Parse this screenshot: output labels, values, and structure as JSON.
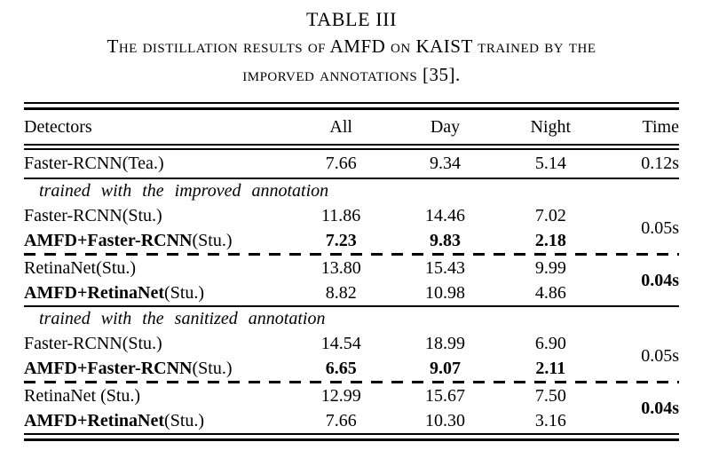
{
  "page": {
    "caption": "TABLE III",
    "subtitle_line1": "The distillation results of AMFD on KAIST trained by the",
    "subtitle_line2": "imporved annotations [35].",
    "text_color": "#000000",
    "background_color": "#ffffff"
  },
  "table": {
    "columns": [
      "Detectors",
      "All",
      "Day",
      "Night",
      "Time"
    ],
    "rows": [
      {
        "type": "data",
        "detector": "Faster-RCNN",
        "suffix": "(Tea.)",
        "bold_detector": false,
        "values": [
          "7.66",
          "9.34",
          "5.14"
        ],
        "bold_values": false,
        "time": "0.12s",
        "time_bold": false,
        "time_rowspan": 1
      },
      {
        "type": "rule"
      },
      {
        "type": "section",
        "label": "trained with the improved annotation"
      },
      {
        "type": "data",
        "detector": "Faster-RCNN",
        "suffix": "(Stu.)",
        "bold_detector": false,
        "values": [
          "11.86",
          "14.46",
          "7.02"
        ],
        "bold_values": false,
        "time": "0.05s",
        "time_bold": false,
        "time_rowspan": 2
      },
      {
        "type": "data",
        "detector": "AMFD+Faster-RCNN",
        "suffix": "(Stu.)",
        "bold_detector": true,
        "values": [
          "7.23",
          "9.83",
          "2.18"
        ],
        "bold_values": true
      },
      {
        "type": "dashed"
      },
      {
        "type": "data",
        "detector": "RetinaNet",
        "suffix": "(Stu.)",
        "bold_detector": false,
        "values": [
          "13.80",
          "15.43",
          "9.99"
        ],
        "bold_values": false,
        "time": "0.04s",
        "time_bold": true,
        "time_rowspan": 2
      },
      {
        "type": "data",
        "detector": "AMFD+RetinaNet",
        "suffix": "(Stu.)",
        "bold_detector": true,
        "values": [
          "8.82",
          "10.98",
          "4.86"
        ],
        "bold_values": false
      },
      {
        "type": "rule"
      },
      {
        "type": "section",
        "label": "trained with the sanitized annotation"
      },
      {
        "type": "data",
        "detector": "Faster-RCNN",
        "suffix": "(Stu.)",
        "bold_detector": false,
        "values": [
          "14.54",
          "18.99",
          "6.90"
        ],
        "bold_values": false,
        "time": "0.05s",
        "time_bold": false,
        "time_rowspan": 2
      },
      {
        "type": "data",
        "detector": "AMFD+Faster-RCNN",
        "suffix": "(Stu.)",
        "bold_detector": true,
        "values": [
          "6.65",
          "9.07",
          "2.11"
        ],
        "bold_values": true
      },
      {
        "type": "dashed"
      },
      {
        "type": "data",
        "detector": "RetinaNet",
        "suffix": " (Stu.)",
        "bold_detector": false,
        "values": [
          "12.99",
          "15.67",
          "7.50"
        ],
        "bold_values": false,
        "time": "0.04s",
        "time_bold": true,
        "time_rowspan": 2
      },
      {
        "type": "data",
        "detector": "AMFD+RetinaNet",
        "suffix": "(Stu.)",
        "bold_detector": true,
        "values": [
          "7.66",
          "10.30",
          "3.16"
        ],
        "bold_values": false
      }
    ]
  }
}
